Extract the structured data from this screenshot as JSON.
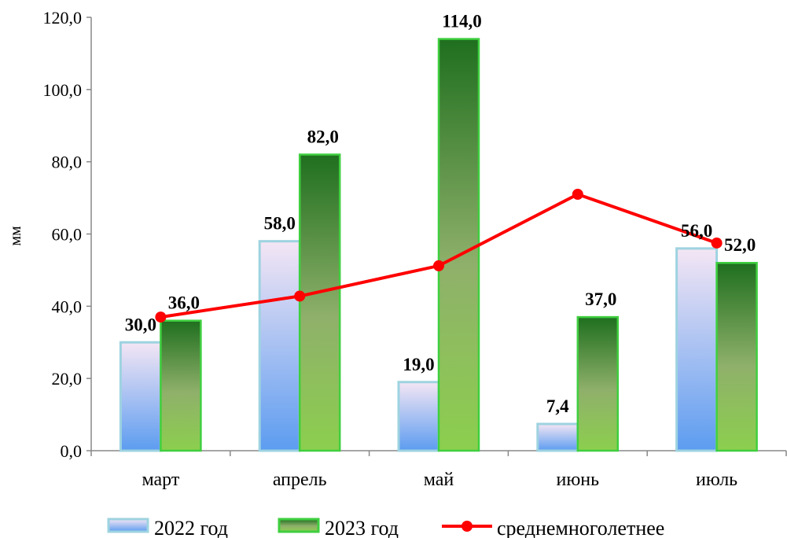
{
  "chart_data": {
    "type": "bar",
    "title": "",
    "xlabel": "",
    "ylabel": "мм",
    "ylim": [
      0,
      120
    ],
    "yticks": [
      "0,0",
      "20,0",
      "40,0",
      "60,0",
      "80,0",
      "100,0",
      "120,0"
    ],
    "categories": [
      "март",
      "апрель",
      "май",
      "июнь",
      "июль"
    ],
    "series": [
      {
        "name": "2022 год",
        "kind": "bar",
        "values": [
          30.0,
          58.0,
          19.0,
          7.4,
          56.0
        ],
        "labels": [
          "30,0",
          "58,0",
          "19,0",
          "7,4",
          "56,0"
        ]
      },
      {
        "name": "2023 год",
        "kind": "bar",
        "values": [
          36.0,
          82.0,
          114.0,
          37.0,
          52.0
        ],
        "labels": [
          "36,0",
          "82,0",
          "114,0",
          "37,0",
          "52,0"
        ]
      },
      {
        "name": "среднемноголетнее",
        "kind": "line",
        "values": [
          37.0,
          42.8,
          51.2,
          71.0,
          57.5
        ]
      }
    ],
    "legend": "bottom",
    "grid": false,
    "colors": {
      "bar2022_top": "#f4e6f4",
      "bar2022_bottom": "#5c9cf0",
      "bar2022_border": "#9ed3e0",
      "bar2023_top": "#1f6f1f",
      "bar2023_mid": "#8fb06a",
      "bar2023_bottom": "#8ccf4e",
      "bar2023_border": "#3fcf3f",
      "line": "#ff0000"
    }
  }
}
